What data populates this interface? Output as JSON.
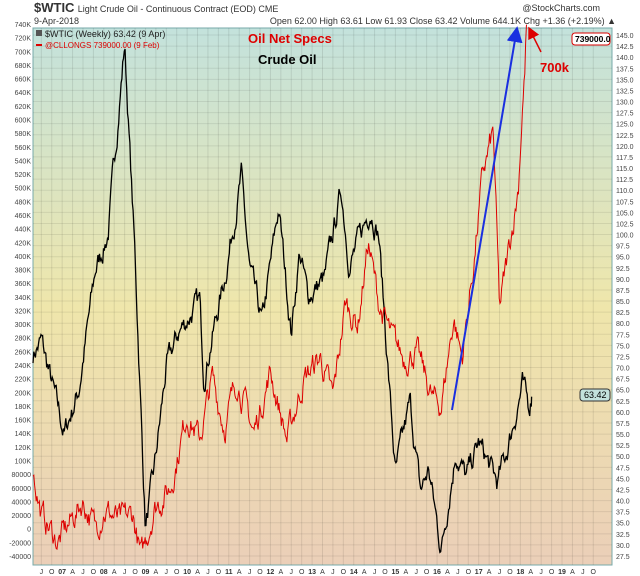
{
  "header": {
    "symbol": "$WTIC",
    "title": "Light Crude Oil - Continuous Contract (EOD) CME",
    "date": "9-Apr-2018",
    "brand": "@StockCharts.com",
    "quote": "Open 62.00 High 63.61 Low 61.93 Close 63.42 Volume 644.1K Chg +1.36 (+2.19%) ▲"
  },
  "legend": {
    "wtic": "$WTIC (Weekly) 63.42 (9 Apr)",
    "longs": "@CLLONGS 739000.00 (9 Feb)"
  },
  "annotations": {
    "title": "Oil Net Specs",
    "subtitle": "Crude Oil",
    "callout": "700k"
  },
  "value_boxes": {
    "longs": "739000.0",
    "price": "63.42"
  },
  "colors": {
    "price": "#000000",
    "longs": "#dd0000",
    "arrow": "#1a2fe0",
    "top": "#c3e2dc",
    "mid": "#efe6ab",
    "bottom": "#ebcfb8"
  },
  "chart_data": {
    "type": "line",
    "title": "$WTIC Light Crude Oil - Continuous Contract (EOD) CME",
    "x_range": [
      2006.3,
      2020.2
    ],
    "left_axis": {
      "range": [
        -40000,
        740000
      ],
      "ticks": [
        "740K",
        "720K",
        "700K",
        "680K",
        "660K",
        "640K",
        "620K",
        "600K",
        "580K",
        "560K",
        "540K",
        "520K",
        "500K",
        "480K",
        "460K",
        "440K",
        "420K",
        "400K",
        "380K",
        "360K",
        "340K",
        "320K",
        "300K",
        "280K",
        "260K",
        "240K",
        "220K",
        "200K",
        "180K",
        "160K",
        "140K",
        "120K",
        "100K",
        "80000",
        "60000",
        "40000",
        "20000",
        "0",
        "-20000",
        "-40000"
      ]
    },
    "right_axis": {
      "range": [
        27.5,
        145
      ],
      "ticks": [
        "145.0",
        "142.5",
        "140.0",
        "137.5",
        "135.0",
        "132.5",
        "130.0",
        "127.5",
        "125.0",
        "122.5",
        "120.0",
        "117.5",
        "115.0",
        "112.5",
        "110.0",
        "107.5",
        "105.0",
        "102.5",
        "100.0",
        "97.5",
        "95.0",
        "92.5",
        "90.0",
        "87.5",
        "85.0",
        "82.5",
        "80.0",
        "77.5",
        "75.0",
        "72.5",
        "70.0",
        "67.5",
        "65.0",
        "62.5",
        "60.0",
        "57.5",
        "55.0",
        "52.5",
        "50.0",
        "47.5",
        "45.0",
        "42.5",
        "40.0",
        "37.5",
        "35.0",
        "32.5",
        "30.0",
        "27.5"
      ]
    },
    "x_ticks": {
      "start": 2006.5,
      "step": 0.25,
      "labels": [
        "J",
        "O",
        "07",
        "A",
        "J",
        "O",
        "08",
        "A",
        "J",
        "O",
        "09",
        "A",
        "J",
        "O",
        "10",
        "A",
        "J",
        "O",
        "11",
        "A",
        "J",
        "O",
        "12",
        "A",
        "J",
        "O",
        "13",
        "A",
        "J",
        "O",
        "14",
        "A",
        "J",
        "O",
        "15",
        "A",
        "J",
        "O",
        "16",
        "A",
        "J",
        "O",
        "17",
        "A",
        "J",
        "O",
        "18",
        "A",
        "J",
        "O",
        "19",
        "A",
        "J",
        "O"
      ]
    },
    "series": [
      {
        "name": "$WTIC (Weekly)",
        "axis": "right",
        "color": "#000000",
        "points": [
          [
            2006.3,
            73
          ],
          [
            2006.5,
            76
          ],
          [
            2007.05,
            55
          ],
          [
            2007.4,
            65
          ],
          [
            2007.8,
            92
          ],
          [
            2008.1,
            100
          ],
          [
            2008.5,
            143
          ],
          [
            2008.75,
            95
          ],
          [
            2009.0,
            34
          ],
          [
            2009.2,
            46
          ],
          [
            2009.5,
            70
          ],
          [
            2009.8,
            78
          ],
          [
            2010.3,
            85
          ],
          [
            2010.4,
            68
          ],
          [
            2010.9,
            90
          ],
          [
            2011.3,
            113
          ],
          [
            2011.5,
            92
          ],
          [
            2011.8,
            80
          ],
          [
            2012.2,
            106
          ],
          [
            2012.5,
            78
          ],
          [
            2012.7,
            96
          ],
          [
            2012.9,
            86
          ],
          [
            2013.3,
            90
          ],
          [
            2013.7,
            110
          ],
          [
            2013.9,
            93
          ],
          [
            2014.4,
            106
          ],
          [
            2014.6,
            100
          ],
          [
            2015.0,
            46
          ],
          [
            2015.35,
            62
          ],
          [
            2015.6,
            42
          ],
          [
            2015.8,
            47
          ],
          [
            2016.1,
            29
          ],
          [
            2016.45,
            51
          ],
          [
            2016.7,
            45
          ],
          [
            2017.0,
            53
          ],
          [
            2017.45,
            44
          ],
          [
            2017.7,
            52
          ],
          [
            2018.05,
            66
          ],
          [
            2018.2,
            61
          ],
          [
            2018.27,
            63.42
          ]
        ]
      },
      {
        "name": "@CLLONGS",
        "axis": "left",
        "color": "#dd0000",
        "points": [
          [
            2006.3,
            85000
          ],
          [
            2006.5,
            20000
          ],
          [
            2006.9,
            -20000
          ],
          [
            2007.2,
            10000
          ],
          [
            2007.5,
            40000
          ],
          [
            2007.8,
            0
          ],
          [
            2008.0,
            30000
          ],
          [
            2008.4,
            10000
          ],
          [
            2008.7,
            20000
          ],
          [
            2008.9,
            -45000
          ],
          [
            2009.2,
            30000
          ],
          [
            2009.6,
            60000
          ],
          [
            2010.0,
            170000
          ],
          [
            2010.3,
            130000
          ],
          [
            2010.6,
            220000
          ],
          [
            2010.9,
            150000
          ],
          [
            2011.2,
            220000
          ],
          [
            2011.6,
            140000
          ],
          [
            2012.0,
            230000
          ],
          [
            2012.4,
            130000
          ],
          [
            2012.8,
            220000
          ],
          [
            2013.2,
            250000
          ],
          [
            2013.5,
            190000
          ],
          [
            2013.8,
            330000
          ],
          [
            2014.1,
            300000
          ],
          [
            2014.35,
            420000
          ],
          [
            2014.6,
            330000
          ],
          [
            2014.9,
            280000
          ],
          [
            2015.2,
            250000
          ],
          [
            2015.5,
            260000
          ],
          [
            2015.9,
            190000
          ],
          [
            2016.1,
            180000
          ],
          [
            2016.4,
            310000
          ],
          [
            2016.6,
            250000
          ],
          [
            2016.9,
            400000
          ],
          [
            2017.1,
            520000
          ],
          [
            2017.35,
            580000
          ],
          [
            2017.5,
            320000
          ],
          [
            2017.8,
            440000
          ],
          [
            2017.95,
            500000
          ],
          [
            2018.05,
            620000
          ],
          [
            2018.1,
            660000
          ],
          [
            2018.15,
            739000
          ]
        ]
      }
    ]
  }
}
